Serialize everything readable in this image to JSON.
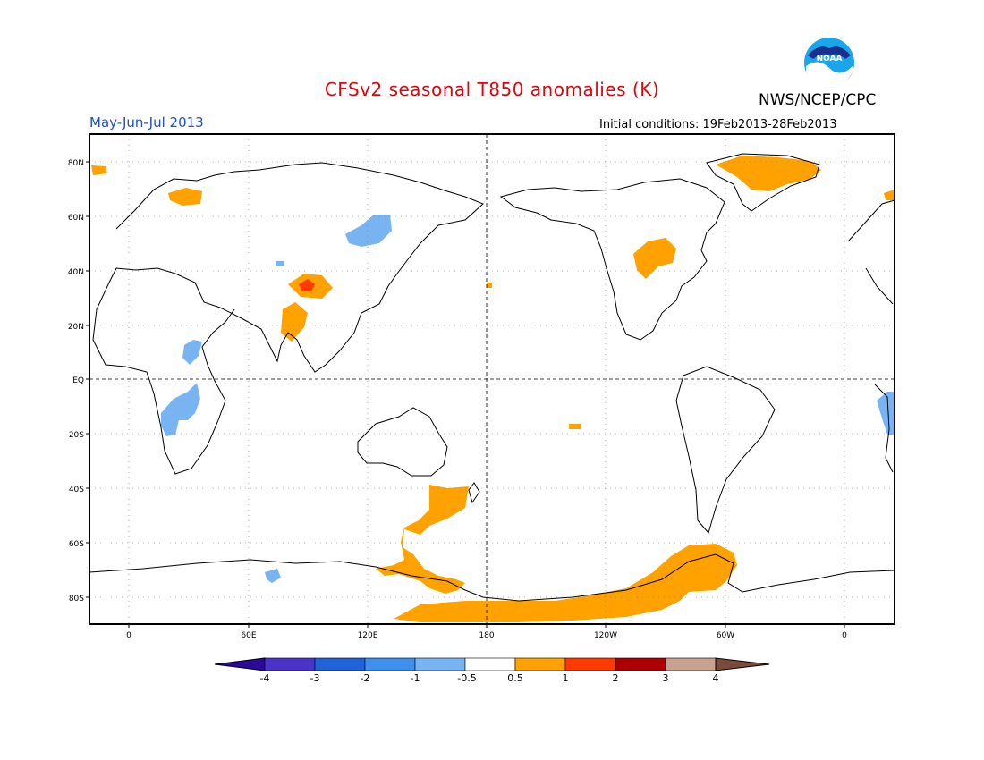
{
  "header": {
    "title": "CFSv2 seasonal T850 anomalies (K)",
    "agency": "NWS/NCEP/CPC",
    "logo_text": "NOAA",
    "season": "May-Jun-Jul 2013",
    "initial_conditions": "Initial conditions: 19Feb2013-28Feb2013"
  },
  "map": {
    "lat_labels": [
      "80N",
      "60N",
      "40N",
      "20N",
      "EQ",
      "20S",
      "40S",
      "60S",
      "80S"
    ],
    "lon_labels": [
      "0",
      "60E",
      "120E",
      "180",
      "120W",
      "60W",
      "0"
    ]
  },
  "colorbar": {
    "labels": [
      "-4",
      "-3",
      "-2",
      "-1",
      "-0.5",
      "0.5",
      "1",
      "2",
      "3",
      "4"
    ],
    "colors": [
      "#4b33c9",
      "#2063d9",
      "#3f8ff0",
      "#79b4f2",
      "#ffffff",
      "#ffa200",
      "#ff3a00",
      "#ad0000",
      "#c9a28e"
    ],
    "low_color": "#2a0a99",
    "high_color": "#7a4a3a"
  }
}
